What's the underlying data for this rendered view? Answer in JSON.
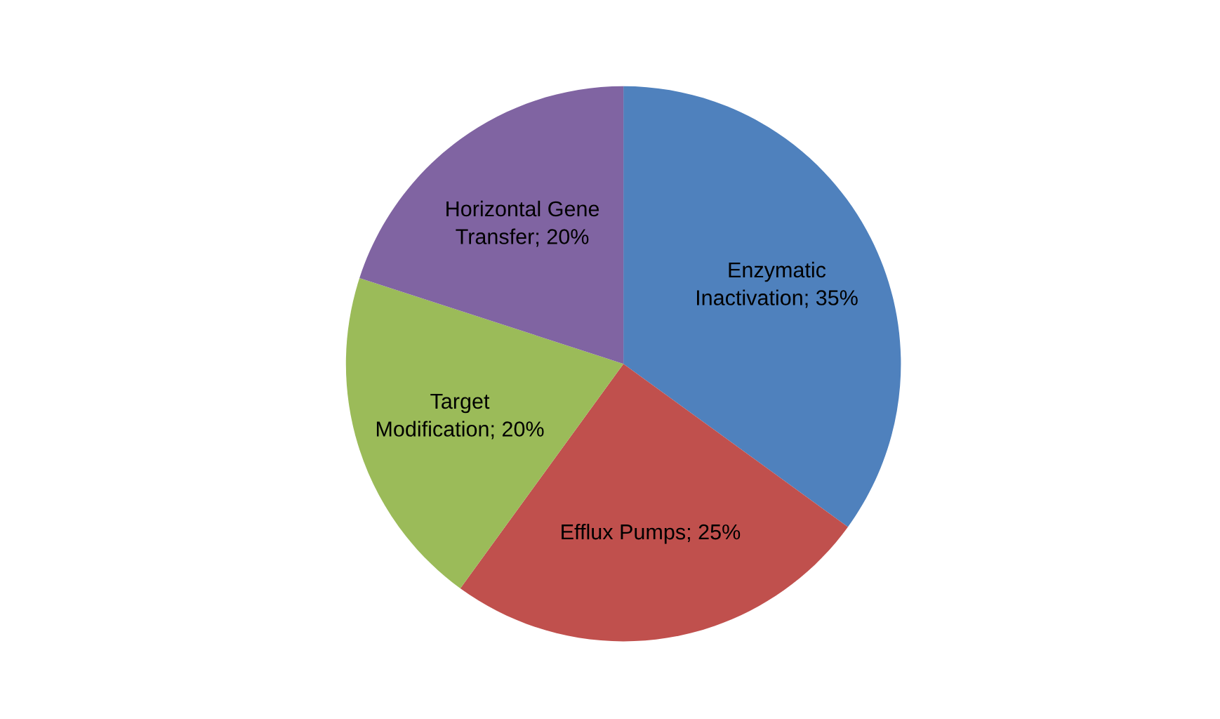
{
  "chart_data": {
    "type": "pie",
    "categories": [
      "Enzymatic Inactivation",
      "Efflux Pumps",
      "Target Modification",
      "Horizontal Gene Transfer"
    ],
    "values": [
      35,
      25,
      20,
      20
    ],
    "value_labels": [
      "35%",
      "25%",
      "20%",
      "20%"
    ],
    "colors": [
      "#4f81bd",
      "#c0504d",
      "#9bbb59",
      "#8064a2"
    ],
    "legend": false
  }
}
